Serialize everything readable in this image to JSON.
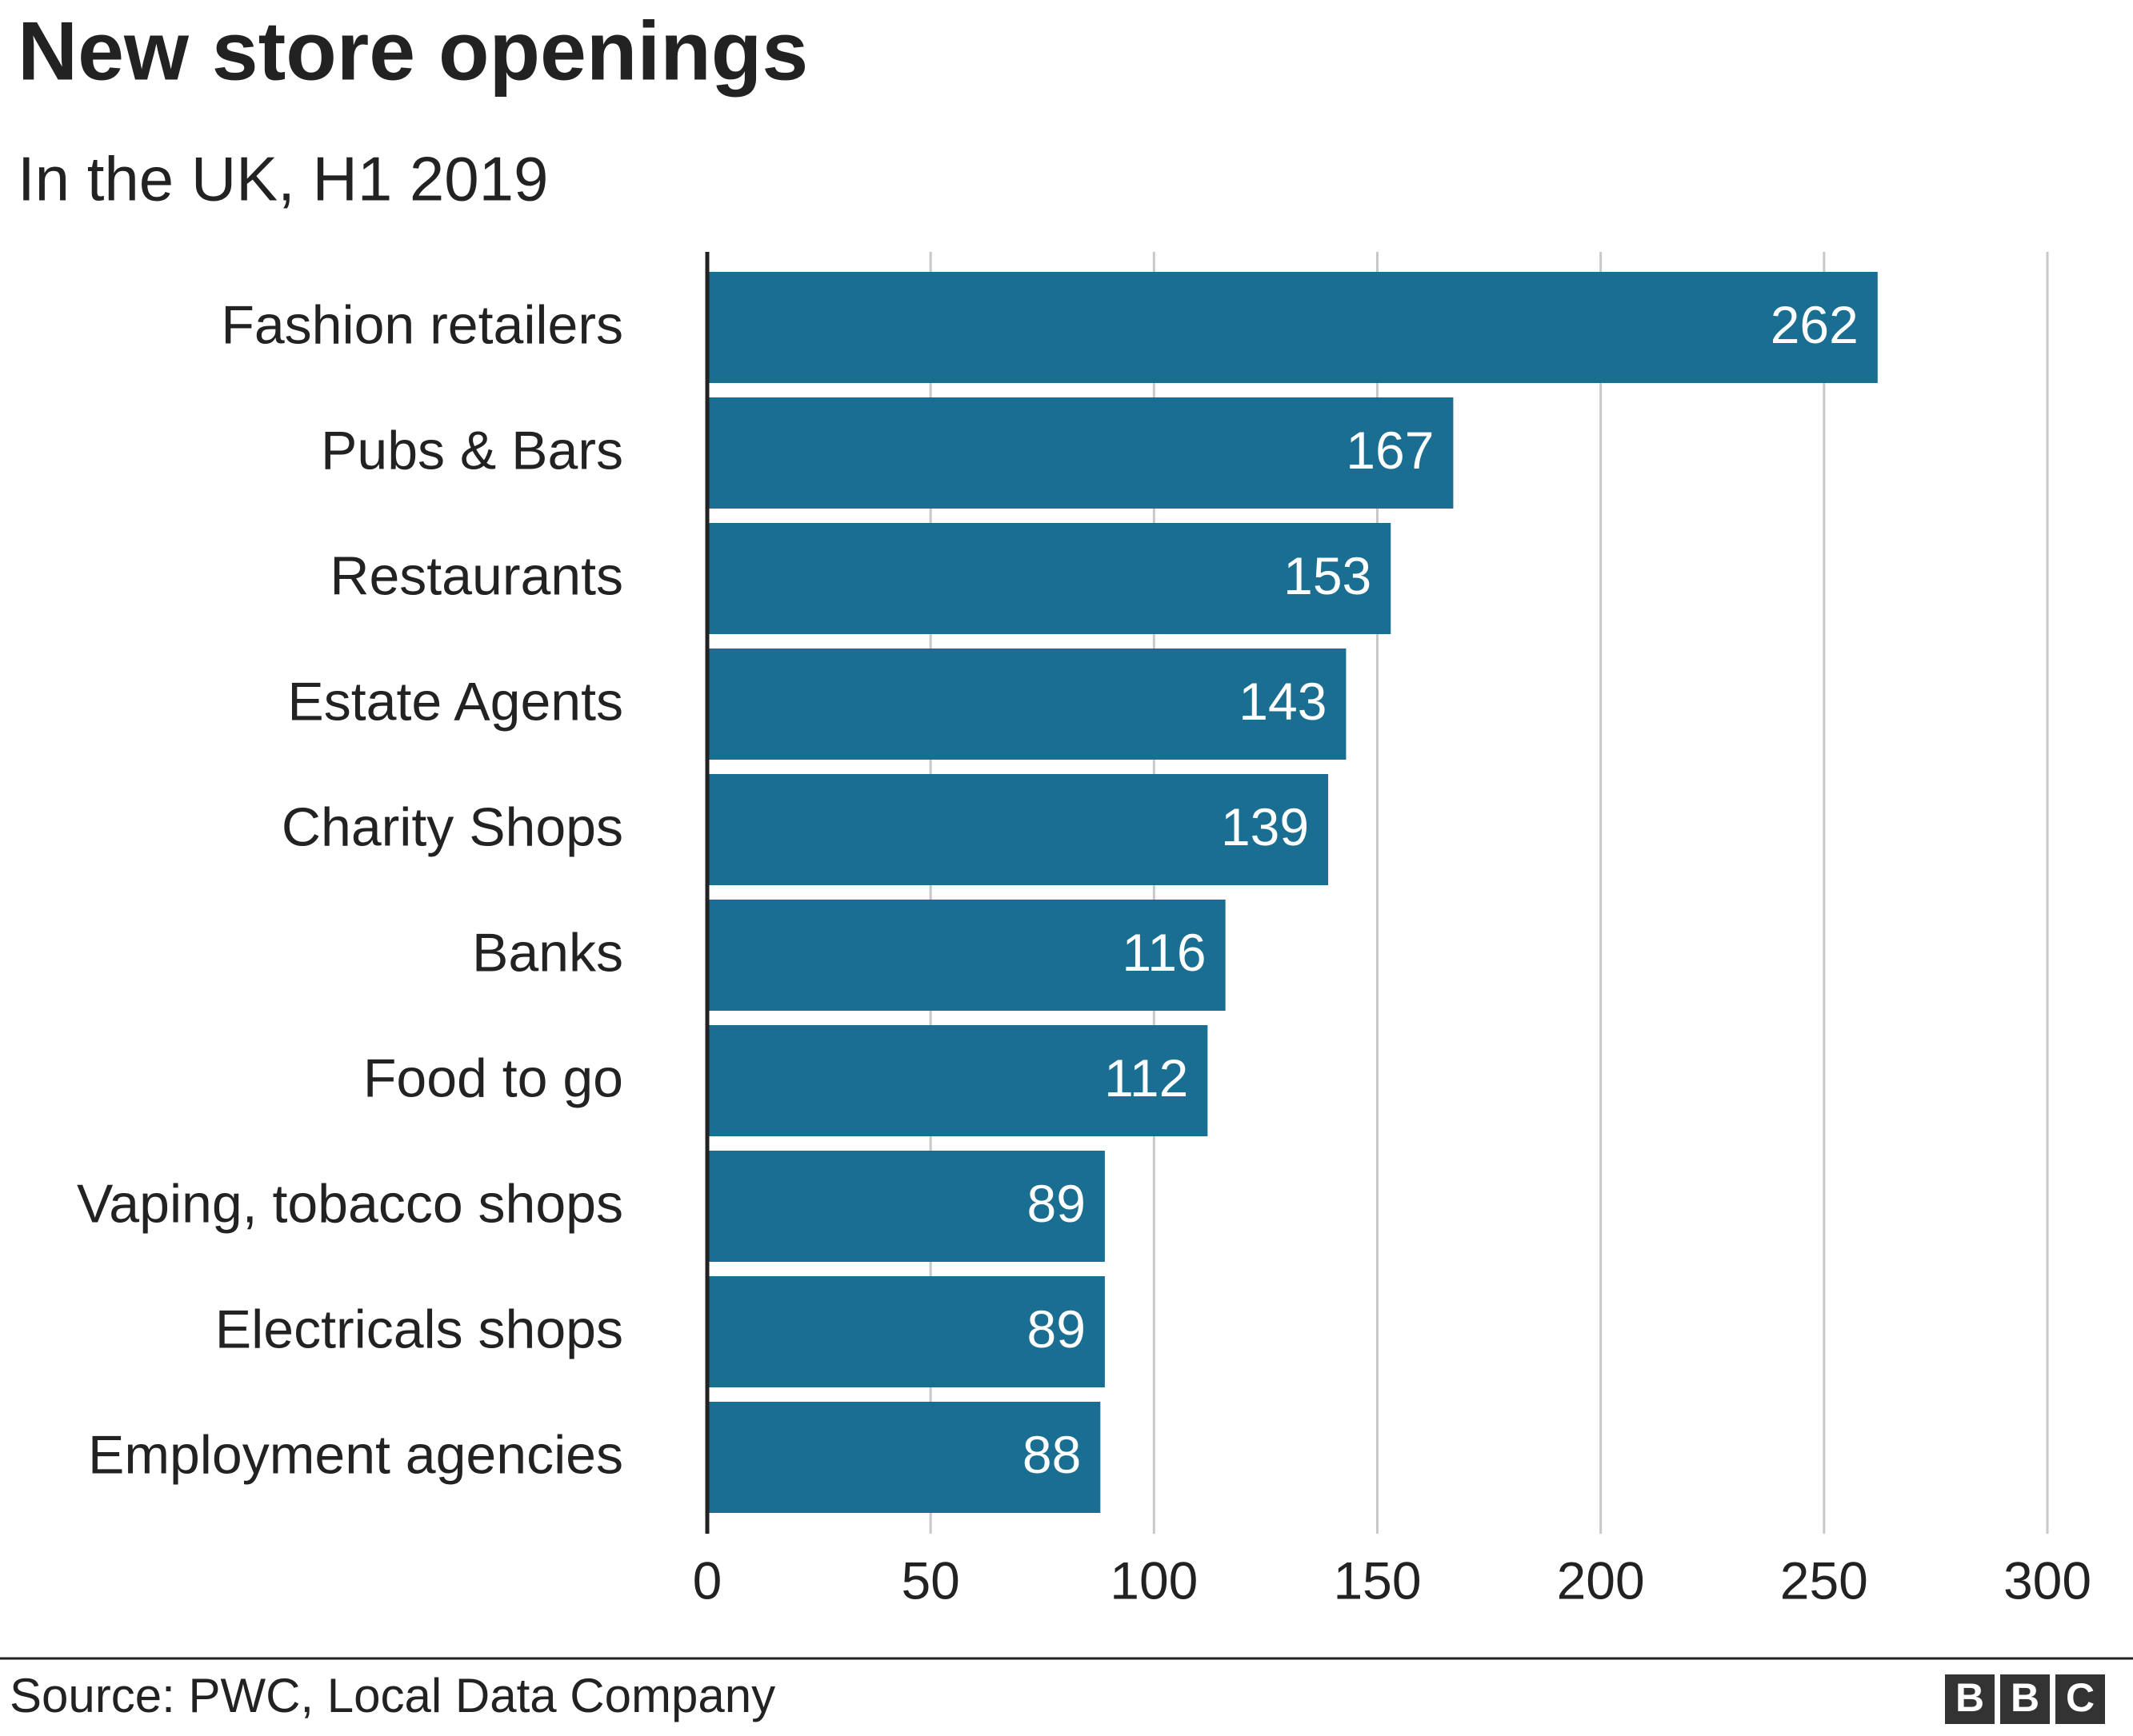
{
  "chart_data": {
    "type": "hbar",
    "title": "New store openings",
    "subtitle": "In the UK, H1 2019",
    "categories": [
      "Fashion retailers",
      "Pubs & Bars",
      "Restaurants",
      "Estate Agents",
      "Charity Shops",
      "Banks",
      "Food to go",
      "Vaping, tobacco shops",
      "Electricals shops",
      "Employment agencies"
    ],
    "values": [
      262,
      167,
      153,
      143,
      139,
      116,
      112,
      89,
      89,
      88
    ],
    "color": "#1a6e91",
    "xlim": [
      0,
      300
    ],
    "xticks": [
      0,
      50,
      100,
      150,
      200,
      250,
      300
    ],
    "grid": true,
    "source": "Source: PWC, Local Data Company",
    "logo": [
      "B",
      "B",
      "C"
    ]
  }
}
